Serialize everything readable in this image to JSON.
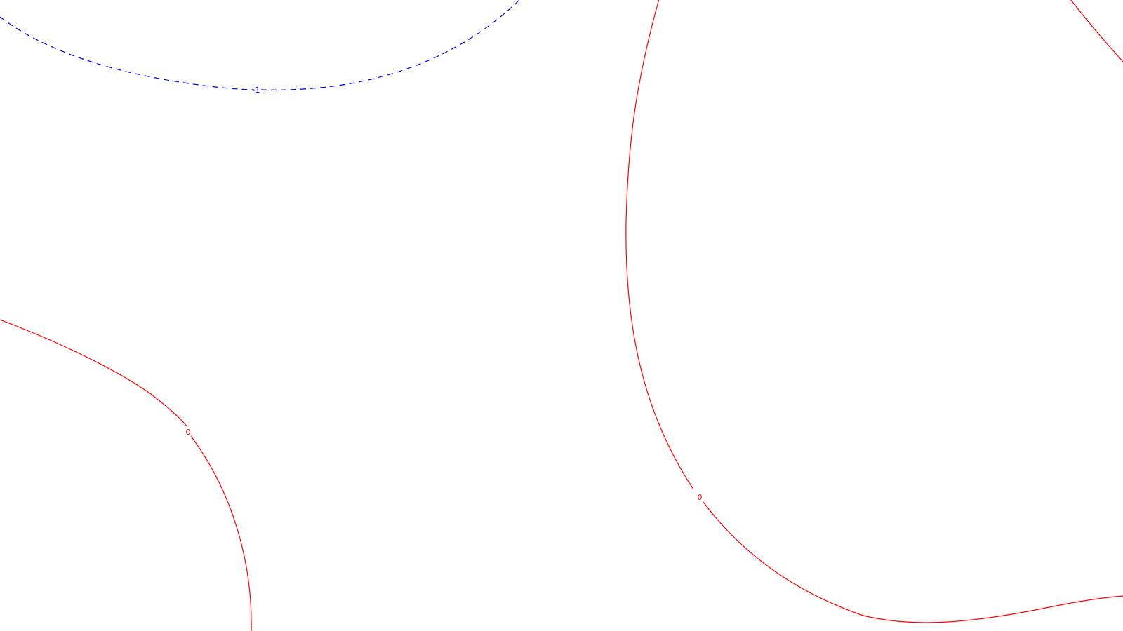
{
  "chart_data": {
    "type": "contour",
    "title": "",
    "xlabel": "",
    "ylabel": "",
    "grid": false,
    "levels": [
      {
        "value": "-1",
        "label": "-1",
        "color": "#0000ff",
        "dashed": true
      },
      {
        "value": "0",
        "label": "0",
        "color": "#ff0000",
        "dashed": false
      }
    ]
  },
  "colors": {
    "background": "#ffffff",
    "negative_contour": "#0000ff",
    "zero_contour": "#ff0000"
  }
}
